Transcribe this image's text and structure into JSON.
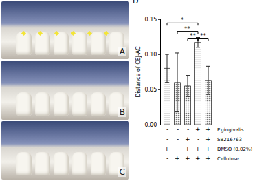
{
  "panels": [
    "A",
    "B",
    "C"
  ],
  "chart_data": {
    "type": "bar",
    "panel_label": "D",
    "y_label": "Distance of CEJ-AC",
    "categories": [
      null,
      null,
      null,
      null,
      null
    ],
    "values": [
      0.08,
      0.06,
      0.055,
      0.117,
      0.063
    ],
    "errors": [
      0.02,
      0.042,
      0.015,
      0.007,
      0.02
    ],
    "colors": [
      "#7a7a7a",
      "#7a7a7a",
      "#7a7a7a",
      "#a8a8a8",
      "#7a7a7a"
    ],
    "ylim": [
      0,
      0.15
    ],
    "yticks": [
      {
        "value": 0,
        "label": "0.00"
      },
      {
        "value": 0.05,
        "label": "0.05"
      },
      {
        "value": 0.1,
        "label": "0.10"
      },
      {
        "value": 0.15,
        "label": "0.15"
      }
    ],
    "grid": false,
    "significance": [
      {
        "from": 0,
        "to": 3,
        "label": "*"
      },
      {
        "from": 1,
        "to": 3,
        "label": "**"
      },
      {
        "from": 2,
        "to": 3,
        "label": "**"
      },
      {
        "from": 3,
        "to": 4,
        "label": "**"
      }
    ],
    "treatment_table": [
      {
        "label": "P.gingivalis",
        "values": [
          "-",
          "-",
          "-",
          "+",
          "+"
        ]
      },
      {
        "label": "SB216763",
        "values": [
          "-",
          "-",
          "+",
          "-",
          "+"
        ]
      },
      {
        "label": "DMSO (0.02%)",
        "values": [
          "+",
          "-",
          "+",
          "+",
          "+"
        ]
      },
      {
        "label": "Cellulose",
        "values": [
          "-",
          "+",
          "+",
          "+",
          "+"
        ]
      }
    ]
  }
}
